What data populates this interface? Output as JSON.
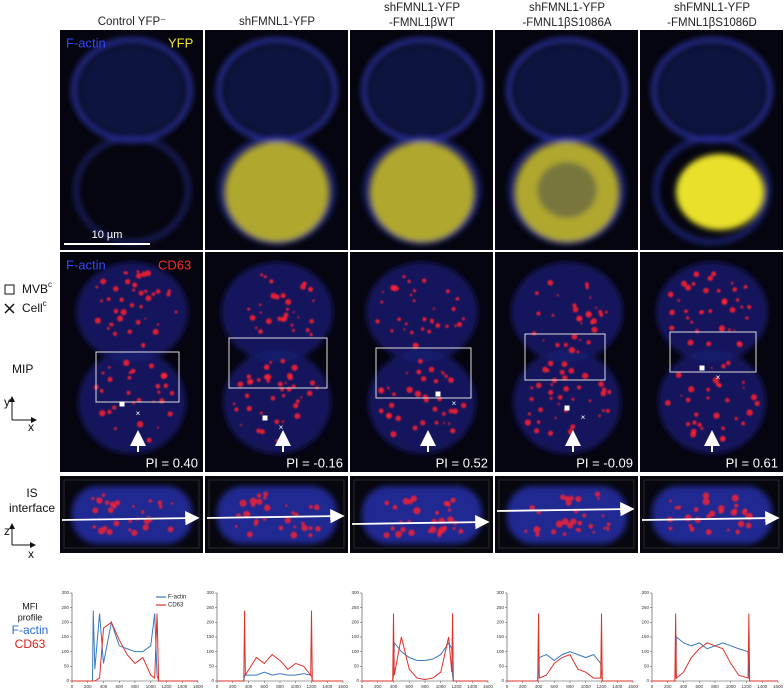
{
  "headers": [
    [
      "Control YFP⁻"
    ],
    [
      "shFMNL1-YFP"
    ],
    [
      "shFMNL1-YFP",
      "-FMNL1βWT"
    ],
    [
      "shFMNL1-YFP",
      "-FMNL1βS1086A"
    ],
    [
      "shFMNL1-YFP",
      "-FMNL1βS1086D"
    ]
  ],
  "row1_labels": [
    "F-actin",
    "YFP"
  ],
  "scale_bar": "10 µm",
  "row2_labels": [
    "F-actin",
    "CD63"
  ],
  "legend": [
    {
      "label": "MVB",
      "superscript": "c"
    },
    {
      "label": "Cell",
      "superscript": "c"
    }
  ],
  "mip_label": "MIP",
  "mip_axes": [
    "y",
    "x"
  ],
  "pi_labels": [
    "PI = 0.40",
    "PI = -0.16",
    "PI = 0.52",
    "PI = -0.09",
    "PI = 0.61"
  ],
  "is_label": [
    "IS",
    "interface"
  ],
  "is_axes": [
    "z",
    "x"
  ],
  "mfi_label": [
    "MFI",
    "profile"
  ],
  "mfi_channels": [
    "F-actin",
    "CD63"
  ],
  "chart_data": [
    {
      "type": "line",
      "legend": true,
      "xlim": [
        0,
        1600
      ],
      "ylim": [
        0,
        300
      ],
      "xticks": [
        0,
        200,
        400,
        600,
        800,
        1000,
        1200,
        1400,
        1600
      ],
      "yticks": [
        0,
        50,
        100,
        150,
        200,
        250,
        300
      ],
      "x": [
        0,
        260,
        270,
        290,
        350,
        400,
        500,
        600,
        700,
        800,
        900,
        1000,
        1050,
        1080,
        1100,
        1600
      ],
      "series": [
        {
          "name": "F-actin",
          "color": "#3a78c0",
          "values": [
            0,
            0,
            240,
            40,
            230,
            60,
            200,
            120,
            110,
            100,
            100,
            120,
            230,
            20,
            0,
            0
          ]
        },
        {
          "name": "CD63",
          "color": "#e0302a",
          "values": [
            0,
            0,
            0,
            0,
            10,
            180,
            200,
            140,
            90,
            60,
            80,
            20,
            10,
            230,
            0,
            0
          ]
        }
      ]
    },
    {
      "type": "line",
      "legend": false,
      "xlim": [
        0,
        1600
      ],
      "ylim": [
        0,
        300
      ],
      "xticks": [
        0,
        200,
        400,
        600,
        800,
        1000,
        1200,
        1400,
        1600
      ],
      "yticks": [
        0,
        50,
        100,
        150,
        200,
        250,
        300
      ],
      "x": [
        0,
        340,
        350,
        360,
        500,
        600,
        700,
        800,
        900,
        1000,
        1100,
        1190,
        1200,
        1210,
        1600
      ],
      "series": [
        {
          "color": "#3a78c0",
          "values": [
            0,
            0,
            20,
            20,
            20,
            30,
            20,
            25,
            20,
            20,
            25,
            20,
            20,
            0,
            0
          ]
        },
        {
          "color": "#e0302a",
          "values": [
            0,
            0,
            240,
            20,
            80,
            60,
            90,
            70,
            40,
            60,
            50,
            20,
            240,
            0,
            0
          ]
        }
      ]
    },
    {
      "type": "line",
      "legend": false,
      "xlim": [
        0,
        1600
      ],
      "ylim": [
        0,
        300
      ],
      "xticks": [
        0,
        200,
        400,
        600,
        800,
        1000,
        1200,
        1400,
        1600
      ],
      "yticks": [
        0,
        50,
        100,
        150,
        200,
        250,
        300
      ],
      "x": [
        0,
        390,
        400,
        410,
        500,
        600,
        700,
        800,
        900,
        1000,
        1100,
        1140,
        1150,
        1160,
        1600
      ],
      "series": [
        {
          "color": "#3a78c0",
          "values": [
            0,
            0,
            20,
            130,
            100,
            80,
            70,
            70,
            75,
            90,
            130,
            110,
            20,
            0,
            0
          ]
        },
        {
          "color": "#e0302a",
          "values": [
            0,
            0,
            230,
            20,
            150,
            40,
            10,
            5,
            10,
            30,
            150,
            30,
            230,
            0,
            0
          ]
        }
      ]
    },
    {
      "type": "line",
      "legend": false,
      "xlim": [
        0,
        1600
      ],
      "ylim": [
        0,
        300
      ],
      "xticks": [
        0,
        200,
        400,
        600,
        800,
        1000,
        1200,
        1400,
        1600
      ],
      "yticks": [
        0,
        50,
        100,
        150,
        200,
        250,
        300
      ],
      "x": [
        0,
        390,
        400,
        410,
        500,
        600,
        700,
        800,
        900,
        1000,
        1100,
        1190,
        1200,
        1210,
        1600
      ],
      "series": [
        {
          "color": "#3a78c0",
          "values": [
            0,
            0,
            30,
            80,
            90,
            70,
            90,
            100,
            90,
            80,
            90,
            60,
            30,
            0,
            0
          ]
        },
        {
          "color": "#e0302a",
          "values": [
            0,
            0,
            230,
            10,
            20,
            60,
            80,
            90,
            40,
            30,
            10,
            10,
            230,
            0,
            0
          ]
        }
      ]
    },
    {
      "type": "line",
      "legend": false,
      "xlim": [
        0,
        1600
      ],
      "ylim": [
        0,
        300
      ],
      "xticks": [
        0,
        200,
        400,
        600,
        800,
        1000,
        1200,
        1400,
        1600
      ],
      "yticks": [
        0,
        50,
        100,
        150,
        200,
        250,
        300
      ],
      "x": [
        0,
        290,
        300,
        310,
        400,
        500,
        600,
        700,
        800,
        900,
        1000,
        1100,
        1220,
        1230,
        1240,
        1600
      ],
      "series": [
        {
          "color": "#3a78c0",
          "values": [
            0,
            0,
            20,
            150,
            130,
            120,
            130,
            110,
            120,
            130,
            120,
            110,
            100,
            20,
            0,
            0
          ]
        },
        {
          "color": "#e0302a",
          "values": [
            0,
            0,
            230,
            10,
            30,
            80,
            110,
            130,
            120,
            110,
            60,
            20,
            10,
            230,
            0,
            0
          ]
        }
      ]
    }
  ]
}
